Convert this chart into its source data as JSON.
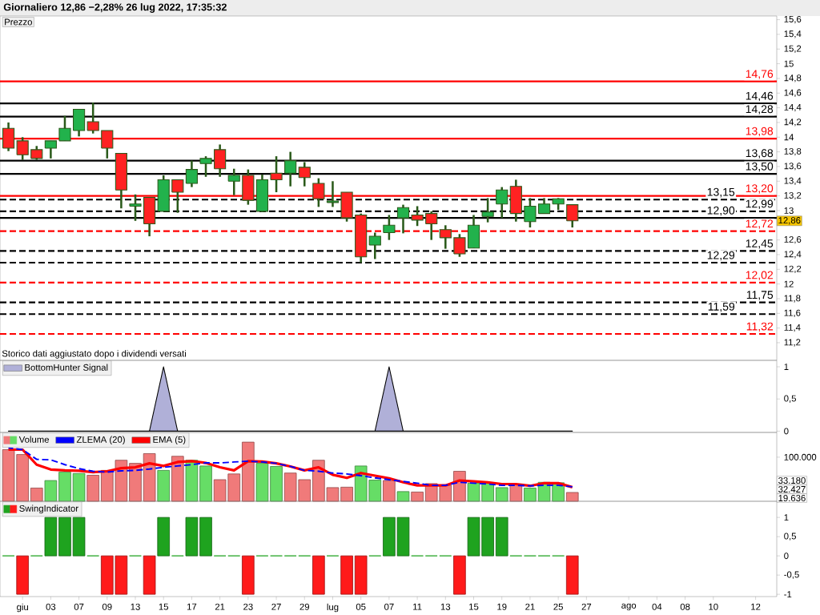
{
  "chart_data": [
    {
      "type": "candlestick",
      "title": "Giornaliero 12,86 −2,28% 26 lug 2022, 17:35:32",
      "categories": [
        null,
        null,
        null,
        null,
        null,
        null,
        null,
        null,
        null,
        null,
        null,
        null,
        null,
        null,
        null,
        null,
        null,
        null,
        null,
        null,
        null,
        null,
        null,
        null,
        null,
        null,
        null,
        null,
        null,
        null,
        null,
        null,
        null,
        null,
        null,
        null,
        null,
        null,
        null,
        null,
        null,
        null,
        null,
        null,
        null,
        null,
        null,
        null,
        null,
        null,
        null,
        null,
        null,
        null
      ],
      "legend_title": "Prezzo",
      "series": [
        {
          "ohlc": [
            [
              14.12,
              14.2,
              13.81,
              13.85
            ],
            [
              13.95,
              14.0,
              13.69,
              13.76
            ],
            [
              13.83,
              13.88,
              13.69,
              13.71
            ],
            [
              13.85,
              13.95,
              13.71,
              13.95
            ],
            [
              13.95,
              14.29,
              13.95,
              14.12
            ],
            [
              14.09,
              14.38,
              14.01,
              14.38
            ],
            [
              14.21,
              14.47,
              14.05,
              14.09
            ],
            [
              14.09,
              14.09,
              13.71,
              13.85
            ],
            [
              13.78,
              13.78,
              13.03,
              13.28
            ],
            [
              13.06,
              13.22,
              12.86,
              13.09
            ],
            [
              13.18,
              13.18,
              12.65,
              12.82
            ],
            [
              12.99,
              13.48,
              12.99,
              13.42
            ],
            [
              13.42,
              13.42,
              12.97,
              13.25
            ],
            [
              13.37,
              13.68,
              13.32,
              13.56
            ],
            [
              13.64,
              13.74,
              13.46,
              13.71
            ],
            [
              13.83,
              13.9,
              13.46,
              13.57
            ],
            [
              13.4,
              13.57,
              13.21,
              13.48
            ],
            [
              13.48,
              13.56,
              13.08,
              13.14
            ],
            [
              12.99,
              13.49,
              12.98,
              13.42
            ],
            [
              13.51,
              13.74,
              13.25,
              13.42
            ],
            [
              13.51,
              13.8,
              13.33,
              13.68
            ],
            [
              13.59,
              13.66,
              13.33,
              13.45
            ],
            [
              13.37,
              13.44,
              13.05,
              13.16
            ],
            [
              13.11,
              13.4,
              13.05,
              13.13
            ],
            [
              13.25,
              13.25,
              12.85,
              12.9
            ],
            [
              12.94,
              12.96,
              12.29,
              12.37
            ],
            [
              12.53,
              12.7,
              12.34,
              12.65
            ],
            [
              12.7,
              12.94,
              12.6,
              12.8
            ],
            [
              12.9,
              13.08,
              12.69,
              13.04
            ],
            [
              12.94,
              13.06,
              12.79,
              12.87
            ],
            [
              12.96,
              12.99,
              12.6,
              12.82
            ],
            [
              12.74,
              12.8,
              12.48,
              12.63
            ],
            [
              12.63,
              12.68,
              12.37,
              12.41
            ],
            [
              12.49,
              12.94,
              12.49,
              12.8
            ],
            [
              12.92,
              13.17,
              12.84,
              12.98
            ],
            [
              13.09,
              13.32,
              12.9,
              13.28
            ],
            [
              13.33,
              13.42,
              12.85,
              12.96
            ],
            [
              12.85,
              13.17,
              12.77,
              13.06
            ],
            [
              12.96,
              13.17,
              12.96,
              13.09
            ],
            [
              13.09,
              13.17,
              13.01,
              13.16
            ],
            [
              13.08,
              13.08,
              12.77,
              12.86
            ],
            null,
            null,
            null,
            null,
            null,
            null,
            null,
            null,
            null,
            null,
            null,
            null,
            null
          ],
          "colors": [
            "#ff2222",
            "#ff2222",
            "#ff2222",
            "#22b24c",
            "#22b24c",
            "#22b24c",
            "#ff2222",
            "#ff2222",
            "#ff2222",
            "#22b24c",
            "#ff2222",
            "#22b24c",
            "#ff2222",
            "#22b24c",
            "#22b24c",
            "#ff2222",
            "#22b24c",
            "#ff2222",
            "#22b24c",
            "#ff2222",
            "#22b24c",
            "#ff2222",
            "#ff2222",
            "#22b24c",
            "#ff2222",
            "#ff2222",
            "#22b24c",
            "#22b24c",
            "#22b24c",
            "#ff2222",
            "#ff2222",
            "#ff2222",
            "#ff2222",
            "#22b24c",
            "#22b24c",
            "#22b24c",
            "#ff2222",
            "#22b24c",
            "#22b24c",
            "#22b24c",
            "#ff2222",
            null,
            null,
            null,
            null,
            null,
            null,
            null,
            null,
            null,
            null,
            null,
            null,
            null
          ]
        }
      ],
      "ylim": [
        10.96,
        15.65
      ],
      "yticks": [
        {
          "value": 11.2,
          "label": "11,2"
        },
        {
          "value": 11.4,
          "label": "11,4"
        },
        {
          "value": 11.6,
          "label": "11,6"
        },
        {
          "value": 11.8,
          "label": "11,8"
        },
        {
          "value": 12,
          "label": "12"
        },
        {
          "value": 12.2,
          "label": "12,2"
        },
        {
          "value": 12.4,
          "label": "12,4"
        },
        {
          "value": 12.6,
          "label": "12,6"
        },
        {
          "value": 13,
          "label": "13"
        },
        {
          "value": 13.2,
          "label": "13,2"
        },
        {
          "value": 13.4,
          "label": "13,4"
        },
        {
          "value": 13.6,
          "label": "13,6"
        },
        {
          "value": 13.8,
          "label": "13,8"
        },
        {
          "value": 14,
          "label": "14"
        },
        {
          "value": 14.2,
          "label": "14,2"
        },
        {
          "value": 14.4,
          "label": "14,4"
        },
        {
          "value": 14.6,
          "label": "14,6"
        },
        {
          "value": 14.8,
          "label": "14,8"
        },
        {
          "value": 15,
          "label": "15"
        },
        {
          "value": 15.2,
          "label": "15,2"
        },
        {
          "value": 15.4,
          "label": "15,4"
        },
        {
          "value": 15.6,
          "label": "15,6"
        }
      ],
      "tick_labels": "y",
      "ref_lines": [
        {
          "axis": "y",
          "value": 14.76,
          "label": "14,76",
          "color": "#ff0000",
          "line_style": "solid"
        },
        {
          "axis": "y",
          "value": 14.46,
          "label": "14,46",
          "color": "#000000",
          "line_style": "solid"
        },
        {
          "axis": "y",
          "value": 14.28,
          "label": "14,28",
          "color": "#000000",
          "line_style": "solid"
        },
        {
          "axis": "y",
          "value": 13.98,
          "label": "13,98",
          "color": "#ff0000",
          "line_style": "solid"
        },
        {
          "axis": "y",
          "value": 13.68,
          "label": "13,68",
          "color": "#000000",
          "line_style": "solid"
        },
        {
          "axis": "y",
          "value": 13.5,
          "label": "13,50",
          "color": "#000000",
          "line_style": "solid"
        },
        {
          "axis": "y",
          "value": 13.2,
          "label": "13,20",
          "color": "#ff0000",
          "line_style": "solid"
        },
        {
          "axis": "y",
          "value": 13.15,
          "label": "13,15",
          "color": "#000000",
          "line_style": "dashed"
        },
        {
          "axis": "y",
          "value": 12.99,
          "label": "12,99",
          "color": "#000000",
          "line_style": "dashed"
        },
        {
          "axis": "y",
          "value": 12.9,
          "label": "12,90",
          "color": "#000000",
          "line_style": "solid"
        },
        {
          "axis": "y",
          "value": 12.72,
          "label": "12,72",
          "color": "#ff0000",
          "line_style": "dashed"
        },
        {
          "axis": "y",
          "value": 12.45,
          "label": "12,45",
          "color": "#000000",
          "line_style": "dashed"
        },
        {
          "axis": "y",
          "value": 12.29,
          "label": "12,29",
          "color": "#000000",
          "line_style": "dashed"
        },
        {
          "axis": "y",
          "value": 12.02,
          "label": "12,02",
          "color": "#ff0000",
          "line_style": "dashed"
        },
        {
          "axis": "y",
          "value": 11.75,
          "label": "11,75",
          "color": "#000000",
          "line_style": "dashed"
        },
        {
          "axis": "y",
          "value": 11.59,
          "label": "11,59",
          "color": "#000000",
          "line_style": "dashed"
        },
        {
          "axis": "y",
          "value": 11.32,
          "label": "11,32",
          "color": "#ff0000",
          "line_style": "dashed"
        }
      ],
      "annotations": [
        "Storico dati aggiustato dopo i dividendi versati",
        {
          "text": "12,86",
          "y": 12.86
        }
      ]
    },
    {
      "type": "area",
      "categories": [
        null,
        null,
        null,
        null,
        null,
        null,
        null,
        null,
        null,
        null,
        null,
        null,
        null,
        null,
        null,
        null,
        null,
        null,
        null,
        null,
        null,
        null,
        null,
        null,
        null,
        null,
        null,
        null,
        null,
        null,
        null,
        null,
        null,
        null,
        null,
        null,
        null,
        null,
        null,
        null,
        null,
        null,
        null,
        null,
        null,
        null,
        null,
        null,
        null,
        null,
        null,
        null,
        null,
        null
      ],
      "series": [
        {
          "name": "BottomHunter Signal",
          "color": "#b0b0d8",
          "values": [
            0,
            0,
            0,
            0,
            0,
            0,
            0,
            0,
            0,
            0,
            0,
            1,
            0,
            0,
            0,
            0,
            0,
            0,
            0,
            0,
            0,
            0,
            0,
            0,
            0,
            0,
            0,
            1,
            0,
            0,
            0,
            0,
            0,
            0,
            0,
            0,
            0,
            0,
            0,
            0,
            0,
            null,
            null,
            null,
            null,
            null,
            null,
            null,
            null,
            null,
            null,
            null,
            null,
            null
          ]
        }
      ],
      "ylim": [
        -0.02,
        1.1
      ],
      "yticks": [
        0,
        {
          "value": 0.5,
          "label": "0,5"
        },
        1
      ],
      "tick_labels": "y",
      "legend": "top left"
    },
    {
      "type": "bar",
      "categories": [
        null,
        null,
        null,
        null,
        null,
        null,
        null,
        null,
        null,
        null,
        null,
        null,
        null,
        null,
        null,
        null,
        null,
        null,
        null,
        null,
        null,
        null,
        null,
        null,
        null,
        null,
        null,
        null,
        null,
        null,
        null,
        null,
        null,
        null,
        null,
        null,
        null,
        null,
        null,
        null,
        null,
        null,
        null,
        null,
        null,
        null,
        null,
        null,
        null,
        null,
        null,
        null,
        null,
        null
      ],
      "series": [
        {
          "name": "Volume",
          "type": "bar",
          "values": [
            117000,
            106000,
            30000,
            47000,
            66000,
            63000,
            59000,
            70000,
            93000,
            86000,
            108000,
            70000,
            102000,
            93000,
            80000,
            49000,
            62000,
            134000,
            86000,
            79000,
            64000,
            49000,
            93000,
            31000,
            32000,
            80000,
            48000,
            47000,
            22000,
            21000,
            40000,
            36000,
            68000,
            41000,
            42000,
            31000,
            38000,
            30000,
            43000,
            42000,
            20000,
            null,
            null,
            null,
            null,
            null,
            null,
            null,
            null,
            null,
            null,
            null,
            null,
            null
          ],
          "colors": [
            "#f07a7a",
            "#f07a7a",
            "#f07a7a",
            "#66dd66",
            "#66dd66",
            "#66dd66",
            "#f07a7a",
            "#f07a7a",
            "#f07a7a",
            "#f07a7a",
            "#f07a7a",
            "#66dd66",
            "#f07a7a",
            "#66dd66",
            "#66dd66",
            "#f07a7a",
            "#f07a7a",
            "#f07a7a",
            "#66dd66",
            "#66dd66",
            "#f07a7a",
            "#f07a7a",
            "#f07a7a",
            "#f07a7a",
            "#f07a7a",
            "#66dd66",
            "#66dd66",
            "#f07a7a",
            "#66dd66",
            "#f07a7a",
            "#f07a7a",
            "#f07a7a",
            "#f07a7a",
            "#66dd66",
            "#66dd66",
            "#66dd66",
            "#f07a7a",
            "#66dd66",
            "#66dd66",
            "#66dd66",
            "#f07a7a",
            null,
            null,
            null,
            null,
            null,
            null,
            null,
            null,
            null,
            null,
            null,
            null,
            null
          ]
        },
        {
          "name": "ZLEMA (20)",
          "type": "line",
          "color": "#0000ff",
          "line_style": "dashed",
          "values": [
            121000,
            117000,
            95000,
            94000,
            83000,
            74000,
            68000,
            66000,
            69000,
            70000,
            73000,
            77000,
            80000,
            83000,
            87000,
            87000,
            89000,
            91000,
            89000,
            86000,
            79000,
            70000,
            68000,
            64000,
            62000,
            58000,
            53000,
            49000,
            45000,
            41000,
            36000,
            36000,
            43000,
            41000,
            39000,
            36000,
            36000,
            35000,
            36000,
            36000,
            33000,
            null,
            null,
            null,
            null,
            null,
            null,
            null,
            null,
            null,
            null,
            null,
            null,
            null
          ]
        },
        {
          "name": "EMA (5)",
          "type": "line",
          "color": "#ff0000",
          "values": [
            117000,
            117000,
            83000,
            72000,
            70000,
            69000,
            66000,
            68000,
            75000,
            77000,
            86000,
            80000,
            89000,
            91000,
            87000,
            77000,
            70000,
            91000,
            90000,
            86000,
            79000,
            70000,
            77000,
            60000,
            53000,
            64000,
            58000,
            52000,
            43000,
            36000,
            36000,
            36000,
            47000,
            45000,
            43000,
            39000,
            39000,
            35000,
            41000,
            41000,
            32000,
            null,
            null,
            null,
            null,
            null,
            null,
            null,
            null,
            null,
            null,
            null,
            null,
            null
          ]
        }
      ],
      "ylim": [
        0,
        156000
      ],
      "yticks": [
        {
          "value": 100000,
          "label": "100.000"
        }
      ],
      "tick_labels": "y",
      "legend": "top left",
      "annotations": [
        "33.180",
        "32.427",
        "19.636"
      ]
    },
    {
      "type": "bar",
      "categories": [
        null,
        "giu",
        null,
        "03",
        null,
        "07",
        null,
        "09",
        null,
        "13",
        null,
        "15",
        null,
        "17",
        null,
        "21",
        null,
        "23",
        null,
        "27",
        null,
        "29",
        null,
        "lug",
        null,
        "05",
        null,
        "07",
        null,
        "11",
        null,
        "13",
        null,
        "15",
        null,
        "19",
        null,
        "21",
        null,
        "25",
        null,
        "27",
        null,
        null,
        "ago",
        null,
        "04",
        null,
        "08",
        null,
        "10",
        null,
        null,
        "12"
      ],
      "series": [
        {
          "name": "SwingIndicator",
          "values": [
            0,
            -1,
            0,
            1,
            1,
            1,
            0,
            -1,
            -1,
            0,
            -1,
            1,
            0,
            1,
            1,
            0,
            0,
            -1,
            0,
            0,
            0,
            0,
            -1,
            0,
            -1,
            -1,
            0,
            1,
            1,
            0,
            0,
            0,
            -1,
            1,
            1,
            1,
            0,
            0,
            0,
            0,
            -1,
            null,
            null,
            null,
            null,
            null,
            null,
            null,
            null,
            null,
            null,
            null,
            null,
            null
          ],
          "colors": [
            "#1fa31f",
            "#ff1a1a",
            "#1fa31f",
            "#1fa31f",
            "#1fa31f",
            "#1fa31f",
            "#1fa31f",
            "#ff1a1a",
            "#ff1a1a",
            "#1fa31f",
            "#ff1a1a",
            "#1fa31f",
            "#1fa31f",
            "#1fa31f",
            "#1fa31f",
            "#1fa31f",
            "#1fa31f",
            "#ff1a1a",
            "#1fa31f",
            "#1fa31f",
            "#1fa31f",
            "#1fa31f",
            "#ff1a1a",
            "#1fa31f",
            "#ff1a1a",
            "#ff1a1a",
            "#1fa31f",
            "#1fa31f",
            "#1fa31f",
            "#1fa31f",
            "#1fa31f",
            "#1fa31f",
            "#ff1a1a",
            "#1fa31f",
            "#1fa31f",
            "#1fa31f",
            "#1fa31f",
            "#1fa31f",
            "#1fa31f",
            "#1fa31f",
            "#ff1a1a",
            null,
            null,
            null,
            null,
            null,
            null,
            null,
            null,
            null,
            null,
            null,
            null,
            null
          ]
        }
      ],
      "ylim": [
        -1.06,
        1.42
      ],
      "yticks": [
        -1,
        {
          "value": -0.5,
          "label": "-0,5"
        },
        0,
        {
          "value": 0.5,
          "label": "0,5"
        },
        1
      ],
      "legend": "top left"
    }
  ]
}
